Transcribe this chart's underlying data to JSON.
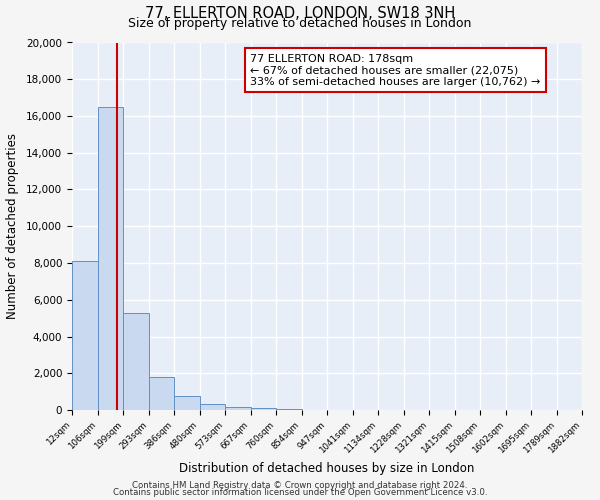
{
  "title": "77, ELLERTON ROAD, LONDON, SW18 3NH",
  "subtitle": "Size of property relative to detached houses in London",
  "xlabel": "Distribution of detached houses by size in London",
  "ylabel": "Number of detached properties",
  "bar_color": "#c9d9f0",
  "bar_edge_color": "#6090c8",
  "background_color": "#e8eef8",
  "grid_color": "#d0d8e8",
  "fig_bg_color": "#f5f5f5",
  "bin_labels": [
    "12sqm",
    "106sqm",
    "199sqm",
    "293sqm",
    "386sqm",
    "480sqm",
    "573sqm",
    "667sqm",
    "760sqm",
    "854sqm",
    "947sqm",
    "1041sqm",
    "1134sqm",
    "1228sqm",
    "1321sqm",
    "1415sqm",
    "1508sqm",
    "1602sqm",
    "1695sqm",
    "1789sqm",
    "1882sqm"
  ],
  "bar_heights": [
    8100,
    16500,
    5300,
    1800,
    750,
    300,
    175,
    100,
    60,
    0,
    0,
    0,
    0,
    0,
    0,
    0,
    0,
    0,
    0,
    0
  ],
  "ylim": [
    0,
    20000
  ],
  "yticks": [
    0,
    2000,
    4000,
    6000,
    8000,
    10000,
    12000,
    14000,
    16000,
    18000,
    20000
  ],
  "vline_color": "#cc0000",
  "annotation_title": "77 ELLERTON ROAD: 178sqm",
  "annotation_line1": "← 67% of detached houses are smaller (22,075)",
  "annotation_line2": "33% of semi-detached houses are larger (10,762) →",
  "annotation_box_color": "#ffffff",
  "annotation_box_edge": "#cc0000",
  "footer1": "Contains HM Land Registry data © Crown copyright and database right 2024.",
  "footer2": "Contains public sector information licensed under the Open Government Licence v3.0."
}
